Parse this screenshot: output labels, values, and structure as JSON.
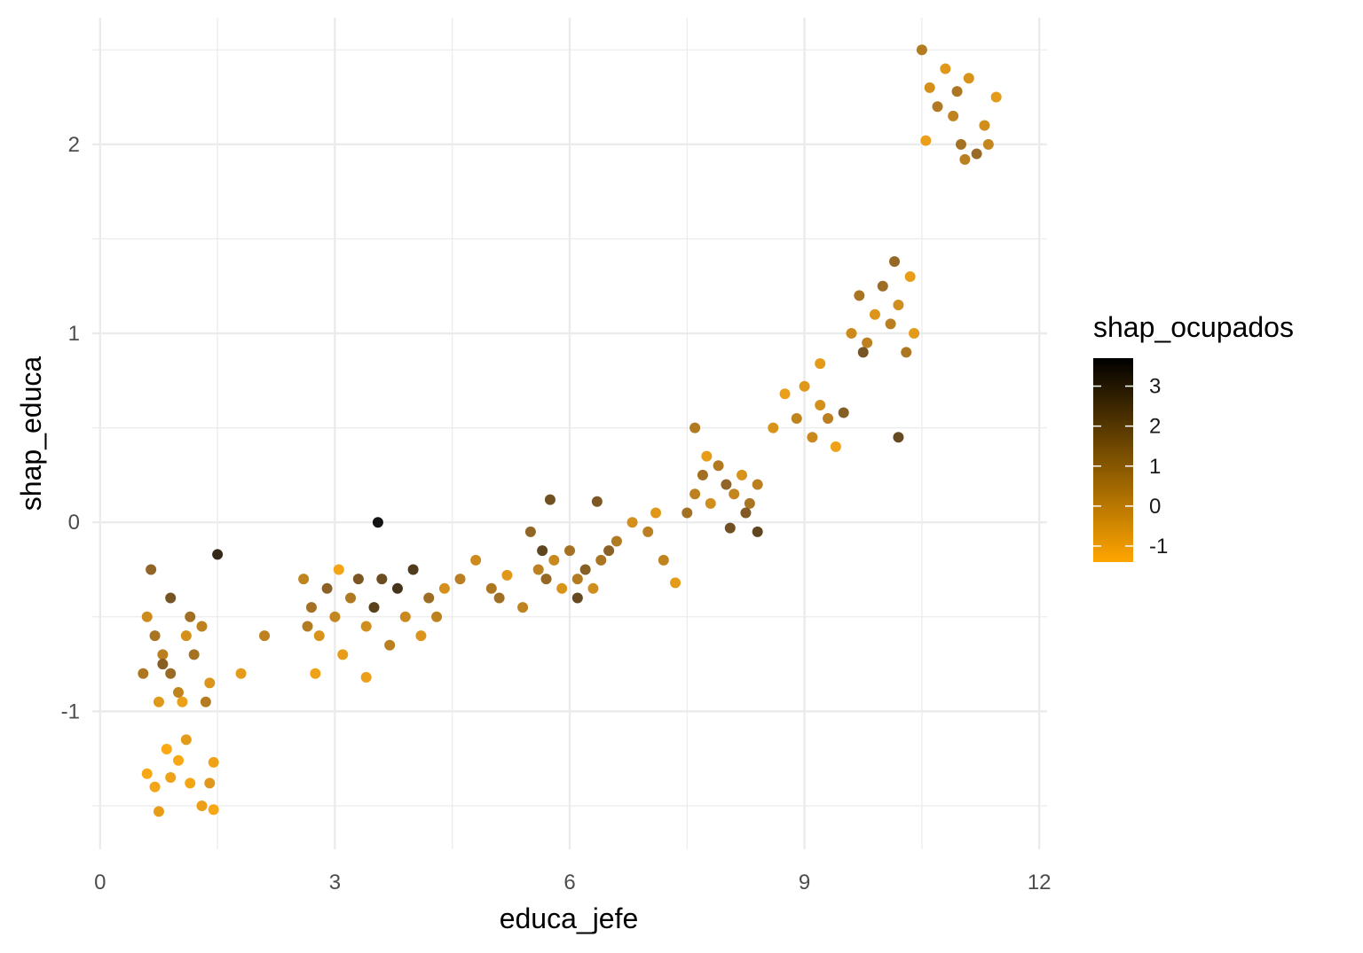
{
  "chart_data": {
    "type": "scatter",
    "xlabel": "educa_jefe",
    "ylabel": "shap_educa",
    "xlim": [
      -0.1,
      12.1
    ],
    "ylim": [
      -1.73,
      2.67
    ],
    "x_ticks": [
      0,
      3,
      6,
      9,
      12
    ],
    "x_tick_labels": [
      "0",
      "3",
      "6",
      "9",
      "12"
    ],
    "y_ticks": [
      -1,
      0,
      1,
      2
    ],
    "y_tick_labels": [
      "-1",
      "0",
      "1",
      "2"
    ],
    "grid": true,
    "legend": {
      "title": "shap_ocupados",
      "placement": "right",
      "ticks": [
        3,
        2,
        1,
        0,
        -1
      ],
      "tick_labels": [
        "3",
        "2",
        "1",
        "0",
        "-1"
      ],
      "range": [
        -1.4,
        3.7
      ],
      "low_color": "#ffa500",
      "high_color": "#000000"
    },
    "points": [
      {
        "x": 0.6,
        "y": -0.5,
        "color": -0.1
      },
      {
        "x": 0.7,
        "y": -0.6,
        "color": 0.8
      },
      {
        "x": 0.8,
        "y": -0.7,
        "color": 0.4
      },
      {
        "x": 0.9,
        "y": -0.8,
        "color": 1.2
      },
      {
        "x": 1.0,
        "y": -0.9,
        "color": 0.2
      },
      {
        "x": 1.1,
        "y": -0.6,
        "color": -0.3
      },
      {
        "x": 1.2,
        "y": -0.7,
        "color": 0.9
      },
      {
        "x": 1.3,
        "y": -0.55,
        "color": 0.3
      },
      {
        "x": 1.4,
        "y": -0.85,
        "color": -0.5
      },
      {
        "x": 0.65,
        "y": -0.25,
        "color": 1.4
      },
      {
        "x": 1.5,
        "y": -0.17,
        "color": 3.1
      },
      {
        "x": 0.9,
        "y": -0.4,
        "color": 1.9
      },
      {
        "x": 0.75,
        "y": -0.95,
        "color": -0.6
      },
      {
        "x": 1.05,
        "y": -0.95,
        "color": -0.9
      },
      {
        "x": 1.35,
        "y": -0.95,
        "color": 0.5
      },
      {
        "x": 0.8,
        "y": -0.75,
        "color": 1.6
      },
      {
        "x": 1.15,
        "y": -0.5,
        "color": 1.0
      },
      {
        "x": 0.55,
        "y": -0.8,
        "color": 0.7
      },
      {
        "x": 0.6,
        "y": -1.33,
        "color": -1.2
      },
      {
        "x": 0.7,
        "y": -1.4,
        "color": -1.1
      },
      {
        "x": 0.75,
        "y": -1.53,
        "color": -0.8
      },
      {
        "x": 0.85,
        "y": -1.2,
        "color": -1.3
      },
      {
        "x": 0.9,
        "y": -1.35,
        "color": -1.0
      },
      {
        "x": 1.0,
        "y": -1.26,
        "color": -1.2
      },
      {
        "x": 1.1,
        "y": -1.15,
        "color": -0.7
      },
      {
        "x": 1.15,
        "y": -1.38,
        "color": -1.1
      },
      {
        "x": 1.3,
        "y": -1.5,
        "color": -0.9
      },
      {
        "x": 1.45,
        "y": -1.27,
        "color": -1.0
      },
      {
        "x": 1.45,
        "y": -1.52,
        "color": -1.2
      },
      {
        "x": 1.4,
        "y": -1.38,
        "color": -0.6
      },
      {
        "x": 1.8,
        "y": -0.8,
        "color": -0.7
      },
      {
        "x": 2.1,
        "y": -0.6,
        "color": 0.3
      },
      {
        "x": 2.6,
        "y": -0.3,
        "color": 0.2
      },
      {
        "x": 2.7,
        "y": -0.45,
        "color": 0.9
      },
      {
        "x": 2.8,
        "y": -0.6,
        "color": -0.4
      },
      {
        "x": 2.9,
        "y": -0.35,
        "color": 1.5
      },
      {
        "x": 3.0,
        "y": -0.5,
        "color": 0.1
      },
      {
        "x": 3.1,
        "y": -0.7,
        "color": -0.8
      },
      {
        "x": 3.2,
        "y": -0.4,
        "color": 0.6
      },
      {
        "x": 3.3,
        "y": -0.3,
        "color": 1.8
      },
      {
        "x": 3.4,
        "y": -0.55,
        "color": -0.2
      },
      {
        "x": 3.5,
        "y": -0.45,
        "color": 2.4
      },
      {
        "x": 3.55,
        "y": 0.0,
        "color": 3.7
      },
      {
        "x": 3.6,
        "y": -0.3,
        "color": 2.1
      },
      {
        "x": 3.7,
        "y": -0.65,
        "color": 0.4
      },
      {
        "x": 3.8,
        "y": -0.35,
        "color": 2.8
      },
      {
        "x": 3.9,
        "y": -0.5,
        "color": 0.0
      },
      {
        "x": 4.0,
        "y": -0.25,
        "color": 2.6
      },
      {
        "x": 4.1,
        "y": -0.6,
        "color": -0.5
      },
      {
        "x": 4.2,
        "y": -0.4,
        "color": 1.1
      },
      {
        "x": 4.3,
        "y": -0.5,
        "color": 0.3
      },
      {
        "x": 4.4,
        "y": -0.35,
        "color": -0.3
      },
      {
        "x": 2.75,
        "y": -0.8,
        "color": -1.0
      },
      {
        "x": 3.4,
        "y": -0.82,
        "color": -0.9
      },
      {
        "x": 2.65,
        "y": -0.55,
        "color": 0.5
      },
      {
        "x": 3.05,
        "y": -0.25,
        "color": -1.1
      },
      {
        "x": 4.6,
        "y": -0.3,
        "color": 0.4
      },
      {
        "x": 4.8,
        "y": -0.2,
        "color": -0.1
      },
      {
        "x": 5.0,
        "y": -0.35,
        "color": 0.7
      },
      {
        "x": 5.2,
        "y": -0.28,
        "color": -0.6
      },
      {
        "x": 5.4,
        "y": -0.45,
        "color": 0.2
      },
      {
        "x": 5.1,
        "y": -0.4,
        "color": 1.0
      },
      {
        "x": 5.6,
        "y": -0.25,
        "color": 0.3
      },
      {
        "x": 5.7,
        "y": -0.3,
        "color": 1.3
      },
      {
        "x": 5.8,
        "y": -0.2,
        "color": 0.0
      },
      {
        "x": 5.9,
        "y": -0.35,
        "color": -0.4
      },
      {
        "x": 6.0,
        "y": -0.15,
        "color": 0.9
      },
      {
        "x": 6.1,
        "y": -0.3,
        "color": 0.5
      },
      {
        "x": 6.2,
        "y": -0.25,
        "color": 1.6
      },
      {
        "x": 6.3,
        "y": -0.35,
        "color": -0.2
      },
      {
        "x": 6.4,
        "y": -0.2,
        "color": 0.8
      },
      {
        "x": 5.75,
        "y": 0.12,
        "color": 2.0
      },
      {
        "x": 6.35,
        "y": 0.11,
        "color": 1.8
      },
      {
        "x": 5.5,
        "y": -0.05,
        "color": 1.4
      },
      {
        "x": 6.1,
        "y": -0.4,
        "color": 2.2
      },
      {
        "x": 5.65,
        "y": -0.15,
        "color": 2.3
      },
      {
        "x": 6.6,
        "y": -0.1,
        "color": 0.6
      },
      {
        "x": 6.8,
        "y": 0.0,
        "color": -0.3
      },
      {
        "x": 7.0,
        "y": -0.05,
        "color": 0.4
      },
      {
        "x": 7.1,
        "y": 0.05,
        "color": -0.6
      },
      {
        "x": 7.2,
        "y": -0.2,
        "color": 0.2
      },
      {
        "x": 7.35,
        "y": -0.32,
        "color": -0.7
      },
      {
        "x": 7.5,
        "y": 0.05,
        "color": 0.9
      },
      {
        "x": 6.5,
        "y": -0.15,
        "color": 1.5
      },
      {
        "x": 7.6,
        "y": 0.15,
        "color": 0.3
      },
      {
        "x": 7.7,
        "y": 0.25,
        "color": 1.0
      },
      {
        "x": 7.8,
        "y": 0.1,
        "color": -0.2
      },
      {
        "x": 7.9,
        "y": 0.3,
        "color": 0.6
      },
      {
        "x": 8.0,
        "y": 0.2,
        "color": 1.4
      },
      {
        "x": 8.1,
        "y": 0.15,
        "color": 0.1
      },
      {
        "x": 8.2,
        "y": 0.25,
        "color": -0.4
      },
      {
        "x": 8.3,
        "y": 0.1,
        "color": 0.8
      },
      {
        "x": 8.4,
        "y": 0.2,
        "color": 0.4
      },
      {
        "x": 8.05,
        "y": -0.03,
        "color": 2.0
      },
      {
        "x": 8.4,
        "y": -0.05,
        "color": 2.3
      },
      {
        "x": 7.6,
        "y": 0.5,
        "color": 0.6
      },
      {
        "x": 8.25,
        "y": 0.05,
        "color": 1.7
      },
      {
        "x": 7.75,
        "y": 0.35,
        "color": -0.8
      },
      {
        "x": 8.6,
        "y": 0.5,
        "color": -0.4
      },
      {
        "x": 8.75,
        "y": 0.68,
        "color": -0.9
      },
      {
        "x": 8.9,
        "y": 0.55,
        "color": 0.2
      },
      {
        "x": 9.0,
        "y": 0.72,
        "color": -0.6
      },
      {
        "x": 9.1,
        "y": 0.45,
        "color": 0.0
      },
      {
        "x": 9.2,
        "y": 0.62,
        "color": -0.3
      },
      {
        "x": 9.3,
        "y": 0.55,
        "color": 0.4
      },
      {
        "x": 9.4,
        "y": 0.4,
        "color": -1.0
      },
      {
        "x": 9.5,
        "y": 0.58,
        "color": 1.6
      },
      {
        "x": 9.2,
        "y": 0.84,
        "color": -0.7
      },
      {
        "x": 9.6,
        "y": 1.0,
        "color": -0.1
      },
      {
        "x": 9.7,
        "y": 1.2,
        "color": 0.8
      },
      {
        "x": 9.8,
        "y": 0.95,
        "color": 0.3
      },
      {
        "x": 9.9,
        "y": 1.1,
        "color": -0.5
      },
      {
        "x": 10.0,
        "y": 1.25,
        "color": 1.1
      },
      {
        "x": 10.1,
        "y": 1.05,
        "color": 0.4
      },
      {
        "x": 10.2,
        "y": 1.15,
        "color": -0.2
      },
      {
        "x": 10.3,
        "y": 0.9,
        "color": 0.7
      },
      {
        "x": 10.4,
        "y": 1.0,
        "color": -0.7
      },
      {
        "x": 10.15,
        "y": 1.38,
        "color": 1.3
      },
      {
        "x": 10.2,
        "y": 0.45,
        "color": 2.2
      },
      {
        "x": 9.75,
        "y": 0.9,
        "color": 1.9
      },
      {
        "x": 10.35,
        "y": 1.3,
        "color": -0.8
      },
      {
        "x": 10.5,
        "y": 2.5,
        "color": 0.5
      },
      {
        "x": 10.6,
        "y": 2.3,
        "color": -0.3
      },
      {
        "x": 10.7,
        "y": 2.2,
        "color": 0.6
      },
      {
        "x": 10.8,
        "y": 2.4,
        "color": -0.6
      },
      {
        "x": 10.9,
        "y": 2.15,
        "color": 0.2
      },
      {
        "x": 11.0,
        "y": 2.0,
        "color": 0.9
      },
      {
        "x": 11.1,
        "y": 2.35,
        "color": -0.4
      },
      {
        "x": 11.2,
        "y": 1.95,
        "color": 1.2
      },
      {
        "x": 11.3,
        "y": 2.1,
        "color": -0.2
      },
      {
        "x": 11.45,
        "y": 2.25,
        "color": -0.7
      },
      {
        "x": 10.55,
        "y": 2.02,
        "color": -0.9
      },
      {
        "x": 11.05,
        "y": 1.92,
        "color": 0.4
      },
      {
        "x": 10.95,
        "y": 2.28,
        "color": 0.7
      },
      {
        "x": 11.35,
        "y": 2.0,
        "color": 0.1
      }
    ]
  }
}
